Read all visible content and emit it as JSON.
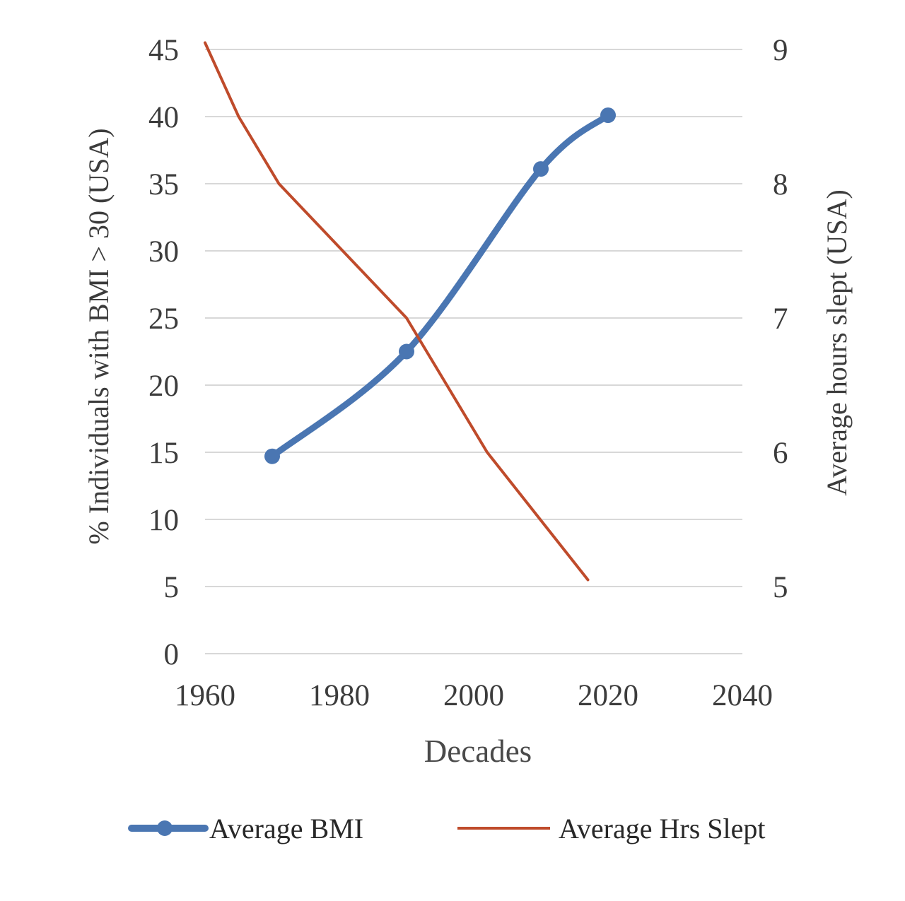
{
  "chart_data": {
    "type": "line",
    "xlabel": "Decades",
    "ylabel_left": "% Individuals with BMI > 30 (USA)",
    "ylabel_right": "Average hours slept (USA)",
    "x_range": [
      1960,
      2040
    ],
    "x_ticks": [
      "1960",
      "1980",
      "2000",
      "2020",
      "2040"
    ],
    "y_left_range": [
      0,
      45
    ],
    "y_left_ticks": [
      "0",
      "5",
      "10",
      "15",
      "20",
      "25",
      "30",
      "35",
      "40",
      "45"
    ],
    "y_right_range": [
      4.5,
      9
    ],
    "y_right_ticks": [
      "5",
      "6",
      "7",
      "8",
      "9"
    ],
    "grid": "horizontal",
    "grid_color": "#d8d8d8",
    "legend_position": "bottom",
    "text_color": "#3c3c3c",
    "series": [
      {
        "name": "Average BMI",
        "axis": "left",
        "color": "#4a76b2",
        "line_width": 9,
        "marker": "circle",
        "marker_size": 22,
        "smooth": true,
        "points": [
          [
            1970,
            14.7
          ],
          [
            1990,
            22.5
          ],
          [
            2010,
            36.1
          ],
          [
            2020,
            40.1
          ]
        ]
      },
      {
        "name": "Average Hrs Slept",
        "axis": "right",
        "color": "#bf4b2b",
        "line_width": 4,
        "marker": "none",
        "smooth": false,
        "points": [
          [
            1960,
            9.05
          ],
          [
            1965,
            8.5
          ],
          [
            1971,
            8.0
          ],
          [
            1990,
            7.0
          ],
          [
            2002,
            6.0
          ],
          [
            2017,
            5.05
          ]
        ]
      }
    ]
  }
}
